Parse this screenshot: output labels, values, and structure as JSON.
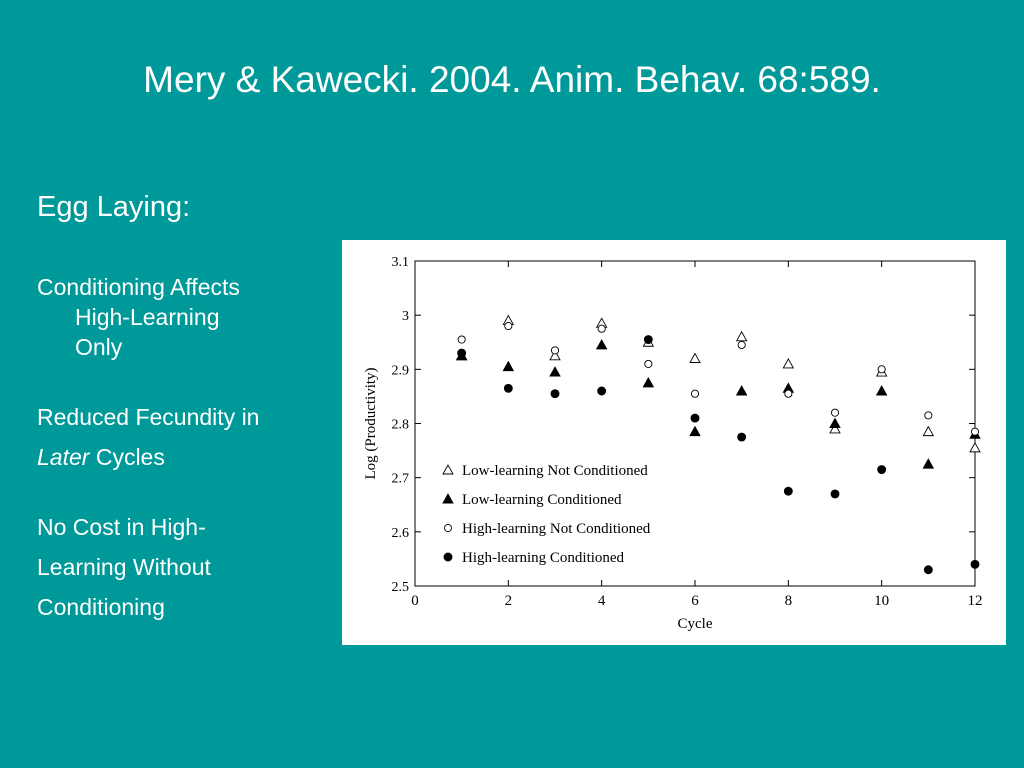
{
  "slide": {
    "title": "Mery & Kawecki. 2004. Anim. Behav. 68:589.",
    "heading": "Egg Laying:",
    "point1": {
      "line1": "Conditioning Affects",
      "line2": "High-Learning",
      "line3": "Only"
    },
    "point2": {
      "line1": "Reduced Fecundity in",
      "line2_italic": "Later",
      "line2_rest": " Cycles"
    },
    "point3": {
      "line1": "No Cost in High-",
      "line2": "Learning Without",
      "line3": "Conditioning"
    }
  },
  "chart_data": {
    "type": "scatter",
    "xlabel": "Cycle",
    "ylabel": "Log (Productivity)",
    "xlim": [
      0,
      12
    ],
    "ylim": [
      2.5,
      3.1
    ],
    "x_ticks": [
      0,
      2,
      4,
      6,
      8,
      10,
      12
    ],
    "y_ticks": [
      2.5,
      2.6,
      2.7,
      2.8,
      2.9,
      3.0,
      3.1
    ],
    "y_tick_labels": [
      "2.5",
      "2.6",
      "2.7",
      "2.8",
      "2.9",
      "3",
      "3.1"
    ],
    "legend_position": "bottom-left",
    "series": [
      {
        "name": "Low-learning Not Conditioned",
        "marker": "triangle-open",
        "x": [
          1,
          2,
          3,
          4,
          5,
          6,
          7,
          8,
          9,
          10,
          11,
          12
        ],
        "y": [
          2.925,
          2.99,
          2.925,
          2.985,
          2.95,
          2.92,
          2.96,
          2.91,
          2.79,
          2.895,
          2.785,
          2.755
        ]
      },
      {
        "name": "Low-learning Conditioned",
        "marker": "triangle-filled",
        "x": [
          1,
          2,
          3,
          4,
          5,
          6,
          7,
          8,
          9,
          10,
          11,
          12
        ],
        "y": [
          2.925,
          2.905,
          2.895,
          2.945,
          2.875,
          2.785,
          2.86,
          2.865,
          2.8,
          2.86,
          2.725,
          2.78
        ]
      },
      {
        "name": "High-learning Not Conditioned",
        "marker": "circle-open",
        "x": [
          1,
          2,
          3,
          4,
          5,
          6,
          7,
          8,
          9,
          10,
          11,
          12
        ],
        "y": [
          2.955,
          2.98,
          2.935,
          2.975,
          2.91,
          2.855,
          2.945,
          2.855,
          2.82,
          2.9,
          2.815,
          2.785
        ]
      },
      {
        "name": "High-learning Conditioned",
        "marker": "circle-filled",
        "x": [
          1,
          2,
          3,
          4,
          5,
          6,
          7,
          8,
          9,
          10,
          11,
          12
        ],
        "y": [
          2.93,
          2.865,
          2.855,
          2.86,
          2.955,
          2.81,
          2.775,
          2.675,
          2.67,
          2.715,
          2.53,
          2.54
        ]
      }
    ]
  }
}
